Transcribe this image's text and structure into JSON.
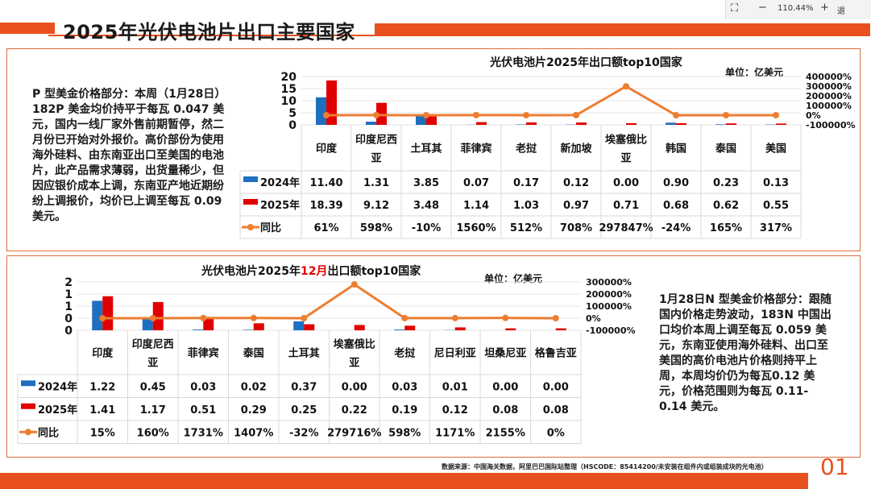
{
  "viewer": {
    "zoom": "110.44%",
    "minus": "−",
    "plus": "+",
    "exit": "退"
  },
  "page": {
    "title": "2025年光伏电池片出口主要国家",
    "page_number": "01",
    "source_note": "数据来源：中国海关数据，阿里巴巴国际站整理（HSCODE：85414200/未安装在组件内或组装成块的光电池）"
  },
  "colors": {
    "accent": "#e8511f",
    "series_2024": "#1f6fbf",
    "series_2025": "#e00000",
    "yoy": "#ed7d31"
  },
  "left_text": "P 型美金价格部分：本周（1月28日） 182P 美金均价持平于每瓦 0.047 美元，国内一线厂家外售前期暂停，然二月份已开始对外报价。高价部份为使用海外硅料、由东南亚出口至美国的电池片，此产品需求薄弱，出货量稀少，但因应银价成本上调，东南亚产地近期纷纷上调报价，均价已上调至每瓦 0.09 美元。",
  "right_text": "1月28日N 型美金价格部分：跟随国内价格走势波动，183N 中国出口均价本周上调至每瓦 0.059 美元，东南亚使用海外硅料、出口至美国的高价电池片价格则持平上周，本周均价仍为每瓦0.12 美元，价格范围则为每瓦 0.11-0.14 美元。",
  "chart_data": [
    {
      "type": "bar",
      "title": "光伏电池片2025年出口额top10国家",
      "unit": "单位：亿美元",
      "categories": [
        "印度",
        "印度尼西亚",
        "土耳其",
        "菲律宾",
        "老挝",
        "新加坡",
        "埃塞俄比亚",
        "韩国",
        "泰国",
        "美国"
      ],
      "series": [
        {
          "name": "2024年",
          "values": [
            11.4,
            1.31,
            3.85,
            0.07,
            0.17,
            0.12,
            0.0,
            0.9,
            0.23,
            0.13
          ]
        },
        {
          "name": "2025年",
          "values": [
            18.39,
            9.12,
            3.48,
            1.14,
            1.03,
            0.97,
            0.71,
            0.68,
            0.62,
            0.55
          ]
        }
      ],
      "line_series": {
        "name": "同比",
        "values": [
          61,
          598,
          -10,
          1560,
          512,
          708,
          297847,
          -24,
          165,
          317
        ]
      },
      "values_text": {
        "2024年": [
          "11.40",
          "1.31",
          "3.85",
          "0.07",
          "0.17",
          "0.12",
          "0.00",
          "0.90",
          "0.23",
          "0.13"
        ],
        "2025年": [
          "18.39",
          "9.12",
          "3.48",
          "1.14",
          "1.03",
          "0.97",
          "0.71",
          "0.68",
          "0.62",
          "0.55"
        ],
        "同比": [
          "61%",
          "598%",
          "-10%",
          "1560%",
          "512%",
          "708%",
          "297847%",
          "-24%",
          "165%",
          "317%"
        ]
      },
      "ylim": [
        0,
        20
      ],
      "yticks": [
        "20",
        "15",
        "10",
        "5",
        "0"
      ],
      "y2lim": [
        -100000,
        400000
      ],
      "y2ticks": [
        "400000%",
        "300000%",
        "200000%",
        "100000%",
        "0%",
        "-100000%"
      ]
    },
    {
      "type": "bar",
      "title_parts": [
        "光伏电池片2025年",
        "12月",
        "出口额top10国家"
      ],
      "unit": "单位：亿美元",
      "categories": [
        "印度",
        "印度尼西亚",
        "菲律宾",
        "泰国",
        "土耳其",
        "埃塞俄比亚",
        "老挝",
        "尼日利亚",
        "坦桑尼亚",
        "格鲁吉亚"
      ],
      "series": [
        {
          "name": "2024年",
          "values": [
            1.22,
            0.45,
            0.03,
            0.02,
            0.37,
            0.0,
            0.03,
            0.01,
            0.0,
            0.0
          ]
        },
        {
          "name": "2025年",
          "values": [
            1.41,
            1.17,
            0.51,
            0.29,
            0.25,
            0.22,
            0.19,
            0.12,
            0.08,
            0.08
          ]
        }
      ],
      "line_series": {
        "name": "同比",
        "values": [
          15,
          160,
          1731,
          1407,
          -32,
          279716,
          598,
          1171,
          2155,
          0
        ]
      },
      "values_text": {
        "2024年": [
          "1.22",
          "0.45",
          "0.03",
          "0.02",
          "0.37",
          "0.00",
          "0.03",
          "0.01",
          "0.00",
          "0.00"
        ],
        "2025年": [
          "1.41",
          "1.17",
          "0.51",
          "0.29",
          "0.25",
          "0.22",
          "0.19",
          "0.12",
          "0.08",
          "0.08"
        ],
        "同比": [
          "15%",
          "160%",
          "1731%",
          "1407%",
          "-32%",
          "279716%",
          "598%",
          "1171%",
          "2155%",
          "0%"
        ]
      },
      "ylim": [
        0,
        2
      ],
      "yticks": [
        "2",
        "1",
        "1",
        "0",
        "0"
      ],
      "y2lim": [
        -100000,
        300000
      ],
      "y2ticks": [
        "300000%",
        "200000%",
        "100000%",
        "0%",
        "-100000%"
      ]
    }
  ]
}
